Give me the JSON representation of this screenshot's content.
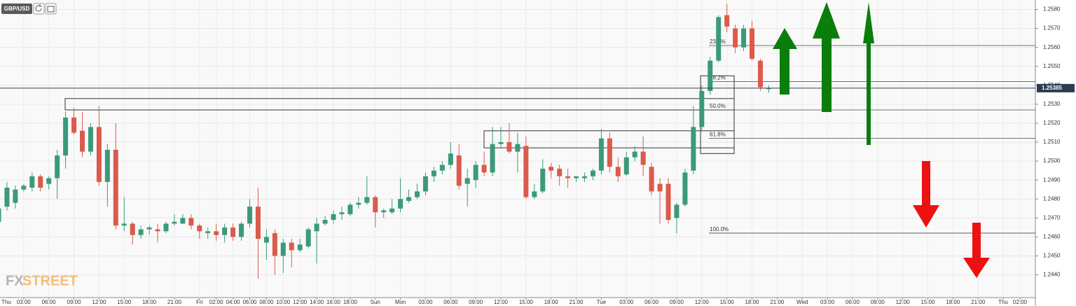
{
  "chart_data": {
    "type": "candlestick",
    "symbol": "GBP/USD",
    "watermark": [
      "FX",
      "STREET"
    ],
    "up_color": "#3a9a7a",
    "down_color": "#dc5a4c",
    "grid": true,
    "ylim": [
      1.2428,
      1.2585
    ],
    "yticks": [
      {
        "value": 1.244,
        "label": "1.2440"
      },
      {
        "value": 1.245,
        "label": "1.2450"
      },
      {
        "value": 1.246,
        "label": "1.2460"
      },
      {
        "value": 1.247,
        "label": "1.2470"
      },
      {
        "value": 1.248,
        "label": "1.2480"
      },
      {
        "value": 1.249,
        "label": "1.2490"
      },
      {
        "value": 1.25,
        "label": "1.2500"
      },
      {
        "value": 1.251,
        "label": "1.2510"
      },
      {
        "value": 1.252,
        "label": "1.2520"
      },
      {
        "value": 1.253,
        "label": "1.2530"
      },
      {
        "value": 1.254,
        "label": "1.2540"
      },
      {
        "value": 1.255,
        "label": "1.2550"
      },
      {
        "value": 1.256,
        "label": "1.2560"
      },
      {
        "value": 1.257,
        "label": "1.2570"
      },
      {
        "value": 1.258,
        "label": "1.2580"
      }
    ],
    "last_price": 1.25385,
    "categories": [
      "Thu",
      null,
      null,
      "03:00",
      null,
      null,
      "06:00",
      null,
      null,
      "09:00",
      null,
      null,
      "12:00",
      null,
      null,
      "15:00",
      null,
      null,
      "18:00",
      null,
      null,
      "21:00",
      null,
      null,
      "Fri",
      null,
      "02:00",
      null,
      "04:00",
      null,
      "06:00",
      null,
      "08:00",
      null,
      "10:00",
      null,
      "12:00",
      null,
      "14:00",
      null,
      "16:00",
      null,
      "18:00",
      null,
      null,
      "Sun",
      null,
      null,
      "Mon",
      null,
      null,
      "03:00",
      null,
      null,
      "06:00",
      null,
      null,
      "09:00",
      null,
      null,
      "12:00",
      null,
      null,
      "15:00",
      null,
      null,
      "18:00",
      null,
      null,
      "21:00",
      null,
      null,
      "Tue",
      null,
      null,
      "03:00",
      null,
      null,
      "06:00",
      null,
      null,
      "09:00",
      null,
      null,
      "12:00",
      null,
      null,
      "15:00",
      null,
      null,
      "18:00",
      null,
      null,
      "21:00",
      null,
      null,
      "Wed",
      null,
      null,
      "03:00",
      null,
      null,
      "06:00",
      null,
      null,
      "09:00",
      null,
      null,
      "12:00",
      null,
      null,
      "15:00",
      null,
      null,
      "18:00",
      null,
      null,
      "21:00",
      null,
      null,
      "Thu",
      null,
      "02:00",
      null
    ],
    "open": [
      1.2468,
      1.2476,
      1.2478,
      1.2485,
      1.2486,
      1.2492,
      1.2488,
      1.2491,
      1.2503,
      1.2523,
      1.2516,
      1.2505,
      1.2518,
      1.2489,
      1.2506,
      1.2466,
      1.2467,
      1.2461,
      1.2464,
      1.2464,
      1.2463,
      1.2467,
      1.2467,
      1.247,
      1.2466,
      1.2462,
      1.2463,
      1.2461,
      1.2465,
      1.246,
      1.2467,
      1.2476,
      1.2457,
      1.2462,
      1.245,
      1.2457,
      1.2453,
      1.2455,
      1.2463,
      1.2467,
      1.2469,
      1.2472,
      1.2472,
      1.2477,
      1.2478,
      1.2481,
      1.2473,
      1.2473,
      1.2475,
      1.2479,
      1.2481,
      1.2484,
      1.2492,
      1.2495,
      1.2498,
      1.2503,
      1.2488,
      1.249,
      1.2498,
      1.2494,
      1.2509,
      1.251,
      1.2505,
      1.2508,
      1.2481,
      1.2484,
      1.2497,
      1.2496,
      1.2492,
      1.2491,
      1.2491,
      1.2492,
      1.2495,
      1.2512,
      1.2497,
      1.2493,
      1.2502,
      1.2505,
      1.2497,
      1.2488,
      1.2488,
      1.247,
      1.2477,
      1.2495,
      1.2518,
      1.2537,
      1.2553,
      1.2577,
      1.257,
      1.256,
      1.257,
      1.2553,
      1.2538,
      null,
      null,
      null,
      null,
      null,
      null,
      null,
      null,
      null,
      null,
      null,
      null,
      null,
      null,
      null,
      null,
      null,
      null,
      null,
      null,
      null,
      null,
      null,
      null,
      null,
      null,
      null,
      null,
      null,
      null,
      null
    ],
    "high": [
      1.2478,
      1.2489,
      1.2487,
      1.2488,
      1.2494,
      1.2493,
      1.2492,
      1.2506,
      1.2526,
      1.2528,
      1.2526,
      1.252,
      1.2529,
      1.2509,
      1.252,
      1.2481,
      1.2468,
      1.2466,
      1.2466,
      1.2467,
      1.2468,
      1.2472,
      1.2472,
      1.2472,
      1.2467,
      1.2465,
      1.2467,
      1.2467,
      1.2467,
      1.2468,
      1.248,
      1.2486,
      1.2464,
      1.2464,
      1.2459,
      1.2459,
      1.2459,
      1.2465,
      1.247,
      1.2471,
      1.2474,
      1.2476,
      1.2478,
      1.2481,
      1.2492,
      1.2482,
      1.2475,
      1.248,
      1.2491,
      1.2485,
      1.2488,
      1.2494,
      1.2497,
      1.25,
      1.251,
      1.2509,
      1.2496,
      1.25,
      1.2505,
      1.2518,
      1.2518,
      1.252,
      1.2515,
      1.2513,
      1.2488,
      1.2501,
      1.2499,
      1.2498,
      1.2496,
      1.2492,
      1.2494,
      1.2496,
      1.2517,
      1.2515,
      1.2502,
      1.2505,
      1.2508,
      1.2513,
      1.2499,
      1.2491,
      1.2491,
      1.2478,
      1.2496,
      1.2529,
      1.254,
      1.2555,
      1.2577,
      1.2583,
      1.2572,
      1.2572,
      1.2574,
      1.2554,
      1.254,
      null,
      null,
      null,
      null,
      null,
      null,
      null,
      null,
      null,
      null,
      null,
      null,
      null,
      null,
      null,
      null,
      null,
      null,
      null,
      null,
      null,
      null,
      null,
      null,
      null,
      null,
      null,
      null,
      null,
      null,
      null
    ],
    "low": [
      1.2465,
      1.2474,
      1.2475,
      1.2484,
      1.2484,
      1.2484,
      1.2485,
      1.248,
      1.2496,
      1.2514,
      1.2502,
      1.2503,
      1.2487,
      1.2476,
      1.2464,
      1.2463,
      1.2456,
      1.2459,
      1.2461,
      1.2457,
      1.2462,
      1.2466,
      1.2467,
      1.2464,
      1.2459,
      1.2459,
      1.2458,
      1.2457,
      1.2458,
      1.2458,
      1.2465,
      1.2438,
      1.2448,
      1.244,
      1.2441,
      1.2444,
      1.2452,
      1.2454,
      1.2446,
      1.2466,
      1.2467,
      1.2469,
      1.2471,
      1.2475,
      1.2477,
      1.2465,
      1.247,
      1.2472,
      1.2473,
      1.2478,
      1.248,
      1.2482,
      1.2489,
      1.2493,
      1.2496,
      1.2485,
      1.2476,
      1.2486,
      1.2492,
      1.2492,
      1.2507,
      1.2504,
      1.2494,
      1.248,
      1.248,
      1.2483,
      1.2491,
      1.2487,
      1.2486,
      1.2489,
      1.2489,
      1.249,
      1.2493,
      1.2494,
      1.2489,
      1.2492,
      1.25,
      1.2492,
      1.2482,
      1.2467,
      1.2467,
      1.2462,
      1.2476,
      1.2493,
      1.2516,
      1.2535,
      1.2552,
      1.2568,
      1.2557,
      1.2558,
      1.2553,
      1.2537,
      1.2536,
      null,
      null,
      null,
      null,
      null,
      null,
      null,
      null,
      null,
      null,
      null,
      null,
      null,
      null,
      null,
      null,
      null,
      null,
      null,
      null,
      null,
      null,
      null,
      null,
      null,
      null,
      null,
      null,
      null,
      null,
      null
    ],
    "close": [
      1.2475,
      1.2486,
      1.2485,
      1.2487,
      1.2492,
      1.2486,
      1.2491,
      1.2503,
      1.2523,
      1.2515,
      1.2505,
      1.2518,
      1.2489,
      1.2506,
      1.2466,
      1.2467,
      1.2461,
      1.2464,
      1.2465,
      1.2463,
      1.2467,
      1.2468,
      1.247,
      1.2466,
      1.2463,
      1.2463,
      1.2461,
      1.2465,
      1.246,
      1.2467,
      1.2476,
      1.2459,
      1.246,
      1.245,
      1.2457,
      1.2453,
      1.2456,
      1.2464,
      1.2467,
      1.2469,
      1.2472,
      1.2473,
      1.2477,
      1.2478,
      1.2481,
      1.2473,
      1.2474,
      1.2475,
      1.248,
      1.2481,
      1.2484,
      1.2492,
      1.2495,
      1.2498,
      1.2504,
      1.2487,
      1.2491,
      1.2498,
      1.2494,
      1.2509,
      1.251,
      1.2505,
      1.2509,
      1.2481,
      1.2484,
      1.2496,
      1.2495,
      1.2492,
      1.2491,
      1.2492,
      1.2492,
      1.2495,
      1.2512,
      1.2497,
      1.2492,
      1.2502,
      1.2505,
      1.2498,
      1.2484,
      1.2484,
      1.2469,
      1.2477,
      1.2494,
      1.2518,
      1.2537,
      1.2553,
      1.2576,
      1.2571,
      1.256,
      1.257,
      1.2554,
      1.2539,
      1.25385,
      null,
      null,
      null,
      null,
      null,
      null,
      null,
      null,
      null,
      null,
      null,
      null,
      null,
      null,
      null,
      null,
      null,
      null,
      null,
      null,
      null,
      null,
      null,
      null,
      null,
      null,
      null,
      null,
      null,
      null,
      null
    ],
    "zones": [
      {
        "top": 1.2533,
        "bottom": 1.2527
      },
      {
        "top": 1.2516,
        "bottom": 1.2507
      },
      {
        "top": 1.2545,
        "bottom": 1.2504
      }
    ],
    "fib_levels": [
      {
        "label": "23.6%",
        "value": 1.2561
      },
      {
        "label": "38.2%",
        "value": 1.2542
      },
      {
        "label": "50.0%",
        "value": 1.2527
      },
      {
        "label": "61.8%",
        "value": 1.2512
      },
      {
        "label": "100.0%",
        "value": 1.2462
      }
    ]
  }
}
